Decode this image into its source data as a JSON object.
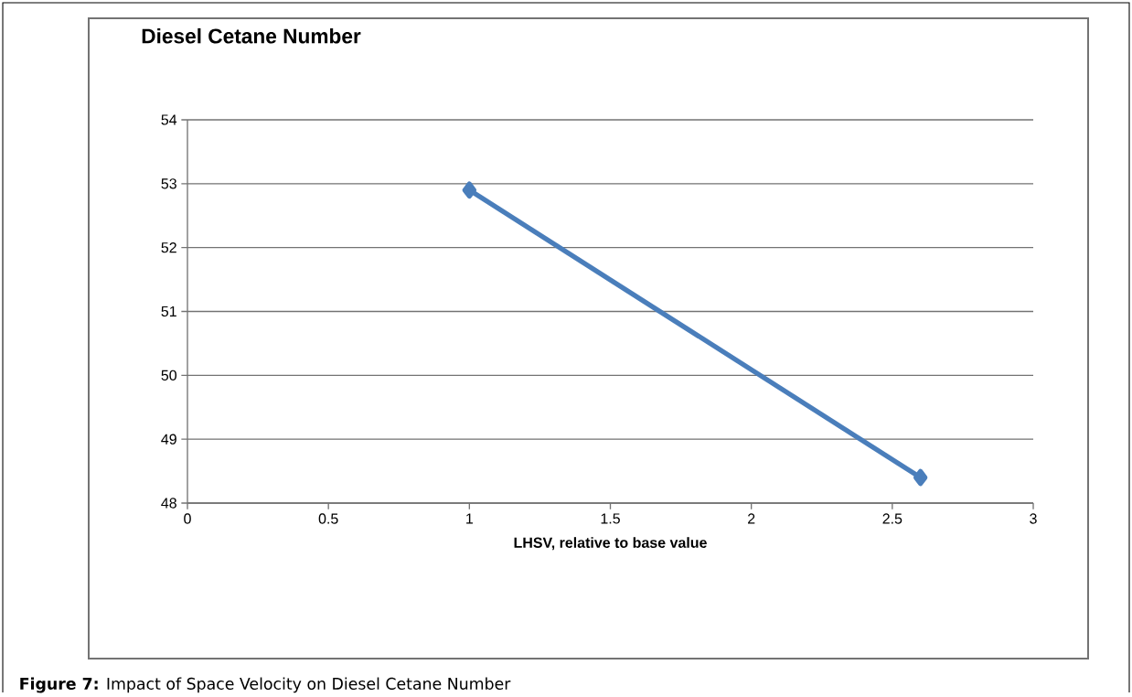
{
  "chart_data": {
    "type": "line",
    "title": "Diesel Cetane Number",
    "xlabel": "LHSV, relative to base value",
    "x": [
      1,
      2.6
    ],
    "series": [
      {
        "color": "#4a7ebb",
        "values": [
          52.9,
          48.4
        ]
      }
    ],
    "xlim": [
      0,
      3
    ],
    "xticks": [
      0,
      0.5,
      1,
      1.5,
      2,
      2.5,
      3
    ],
    "ylim": [
      48,
      54
    ],
    "yticks": [
      48,
      49,
      50,
      51,
      52,
      53,
      54
    ],
    "grid": "y",
    "marker": "diamond",
    "line_style": "solid",
    "annotations": [
      "**Figure 7:** Impact of Space Velocity on Diesel Cetane Number"
    ]
  }
}
